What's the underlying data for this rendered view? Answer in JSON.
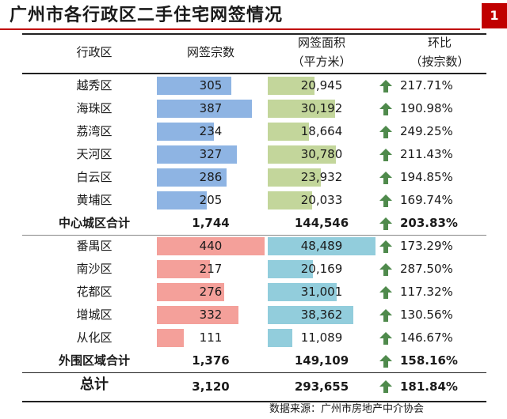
{
  "title": "广州市各行政区二手住宅网签情况",
  "page_number": "1",
  "headers": {
    "district": "行政区",
    "count": "网签宗数",
    "area_line1": "网签面积",
    "area_line2": "（平方米）",
    "mom_line1": "环比",
    "mom_line2": "（按宗数）"
  },
  "colors": {
    "accent": "#c00000",
    "central_count_bar": "#8eb4e3",
    "central_area_bar": "#c3d69b",
    "outer_count_bar": "#f4a09a",
    "outer_area_bar": "#92cddc",
    "arrow": "#4f8a4c"
  },
  "max_count": 440,
  "max_area": 48489,
  "rows": [
    {
      "name": "越秀区",
      "count": 305,
      "count_label": "305",
      "area": 20945,
      "area_label": "20,945",
      "mom": "217.71%",
      "group": "central",
      "trend": "up"
    },
    {
      "name": "海珠区",
      "count": 387,
      "count_label": "387",
      "area": 30192,
      "area_label": "30,192",
      "mom": "190.98%",
      "group": "central",
      "trend": "up"
    },
    {
      "name": "荔湾区",
      "count": 234,
      "count_label": "234",
      "area": 18664,
      "area_label": "18,664",
      "mom": "249.25%",
      "group": "central",
      "trend": "up"
    },
    {
      "name": "天河区",
      "count": 327,
      "count_label": "327",
      "area": 30780,
      "area_label": "30,780",
      "mom": "211.43%",
      "group": "central",
      "trend": "up"
    },
    {
      "name": "白云区",
      "count": 286,
      "count_label": "286",
      "area": 23932,
      "area_label": "23,932",
      "mom": "194.85%",
      "group": "central",
      "trend": "up"
    },
    {
      "name": "黄埔区",
      "count": 205,
      "count_label": "205",
      "area": 20033,
      "area_label": "20,033",
      "mom": "169.74%",
      "group": "central",
      "trend": "up"
    },
    {
      "name": "中心城区合计",
      "count_label": "1,744",
      "area_label": "144,546",
      "mom": "203.83%",
      "group": "subtotal",
      "trend": "up"
    },
    {
      "name": "番禺区",
      "count": 440,
      "count_label": "440",
      "area": 48489,
      "area_label": "48,489",
      "mom": "173.29%",
      "group": "outer",
      "trend": "up"
    },
    {
      "name": "南沙区",
      "count": 217,
      "count_label": "217",
      "area": 20169,
      "area_label": "20,169",
      "mom": "287.50%",
      "group": "outer",
      "trend": "up"
    },
    {
      "name": "花都区",
      "count": 276,
      "count_label": "276",
      "area": 31001,
      "area_label": "31,001",
      "mom": "117.32%",
      "group": "outer",
      "trend": "up"
    },
    {
      "name": "增城区",
      "count": 332,
      "count_label": "332",
      "area": 38362,
      "area_label": "38,362",
      "mom": "130.56%",
      "group": "outer",
      "trend": "up"
    },
    {
      "name": "从化区",
      "count": 111,
      "count_label": "111",
      "area": 11089,
      "area_label": "11,089",
      "mom": "146.67%",
      "group": "outer",
      "trend": "up"
    },
    {
      "name": "外围区域合计",
      "count_label": "1,376",
      "area_label": "149,109",
      "mom": "158.16%",
      "group": "subtotal",
      "trend": "up"
    },
    {
      "name": "总计",
      "count_label": "3,120",
      "area_label": "293,655",
      "mom": "181.84%",
      "group": "total",
      "trend": "up"
    }
  ],
  "source": "数据来源：广州市房地产中介协会"
}
